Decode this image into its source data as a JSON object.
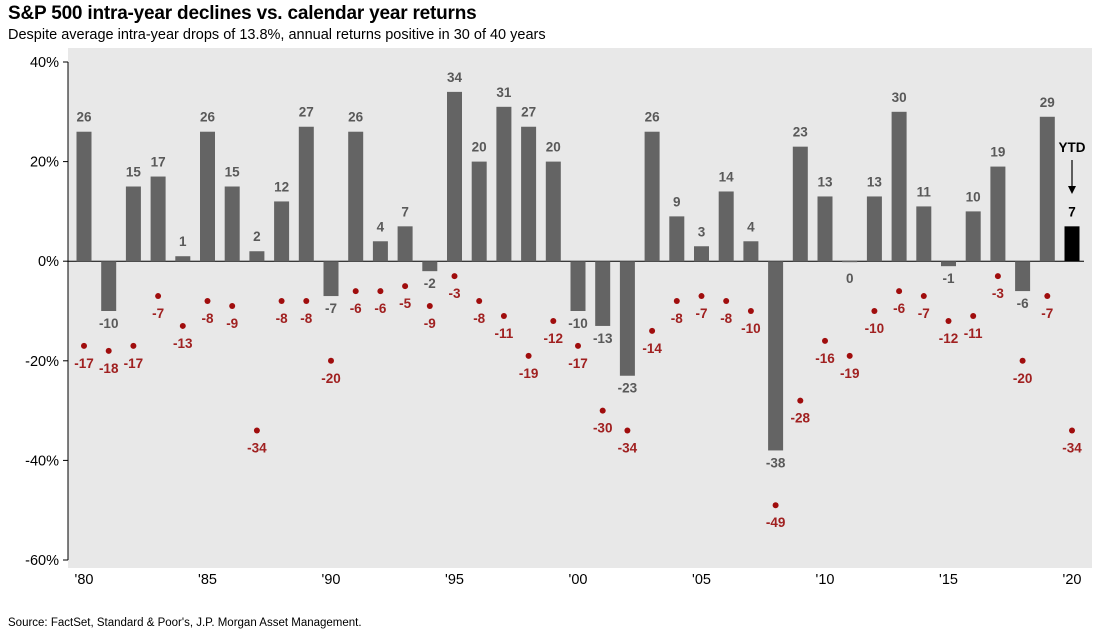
{
  "title": "S&P 500 intra-year declines vs. calendar year returns",
  "subtitle": "Despite average intra-year drops of 13.8%, annual returns positive in 30 of 40 years",
  "source": "Source: FactSet, Standard & Poor's, J.P. Morgan Asset Management.",
  "colors": {
    "bar": "#646464",
    "ytd_bar": "#000000",
    "dot": "#a00d0d",
    "dot_label": "#a02020",
    "bar_label": "#595959",
    "plot_bg": "#e8e8e8"
  },
  "chart_data": {
    "type": "bar",
    "x": [
      1980,
      1981,
      1982,
      1983,
      1984,
      1985,
      1986,
      1987,
      1988,
      1989,
      1990,
      1991,
      1992,
      1993,
      1994,
      1995,
      1996,
      1997,
      1998,
      1999,
      2000,
      2001,
      2002,
      2003,
      2004,
      2005,
      2006,
      2007,
      2008,
      2009,
      2010,
      2011,
      2012,
      2013,
      2014,
      2015,
      2016,
      2017,
      2018,
      2019,
      2020
    ],
    "series": [
      {
        "name": "",
        "kind": "bar",
        "values": [
          26,
          -10,
          15,
          17,
          1,
          26,
          15,
          2,
          12,
          27,
          -7,
          26,
          4,
          7,
          -2,
          34,
          20,
          31,
          27,
          20,
          -10,
          -13,
          -23,
          26,
          9,
          3,
          14,
          4,
          -38,
          23,
          13,
          0,
          13,
          30,
          11,
          -1,
          10,
          19,
          -6,
          29,
          7
        ],
        "labels": [
          "26",
          "-10",
          "15",
          "17",
          "1",
          "26",
          "15",
          "2",
          "12",
          "27",
          "-7",
          "26",
          "4",
          "7",
          "-2",
          "34",
          "20",
          "31",
          "27",
          "20",
          "-10",
          "-13",
          "-23",
          "26",
          "9",
          "3",
          "14",
          "4",
          "-38",
          "23",
          "13",
          "0",
          "13",
          "30",
          "11",
          "-1",
          "10",
          "19",
          "-6",
          "29",
          "7"
        ]
      },
      {
        "name": "",
        "kind": "scatter",
        "values": [
          -17,
          -18,
          -17,
          -7,
          -13,
          -8,
          -9,
          -34,
          -8,
          -8,
          -20,
          -6,
          -6,
          -5,
          -9,
          -3,
          -8,
          -11,
          -19,
          -12,
          -17,
          -30,
          -34,
          -14,
          -8,
          -7,
          -8,
          -10,
          -49,
          -28,
          -16,
          -19,
          -10,
          -6,
          -7,
          -12,
          -11,
          -3,
          -20,
          -7,
          -34
        ],
        "labels": [
          "-17",
          "-18",
          "-17",
          "-7",
          "-13",
          "-8",
          "-9",
          "-34",
          "-8",
          "-8",
          "-20",
          "-6",
          "-6",
          "-5",
          "-9",
          "-3",
          "-8",
          "-11",
          "-19",
          "-12",
          "-17",
          "-30",
          "-34",
          "-14",
          "-8",
          "-7",
          "-8",
          "-10",
          "-49",
          "-28",
          "-16",
          "-19",
          "-10",
          "-6",
          "-7",
          "-12",
          "-11",
          "-3",
          "-20",
          "-7",
          "-34"
        ]
      }
    ],
    "ytd_index": 40,
    "ytd_annotation": "YTD",
    "ylim": [
      -60,
      40
    ],
    "yticks": [
      40,
      20,
      0,
      -20,
      -40,
      -60
    ],
    "ytick_labels": [
      "40%",
      "20%",
      "0%",
      "-20%",
      "-40%",
      "-60%"
    ],
    "xtick_years": [
      1980,
      1985,
      1990,
      1995,
      2000,
      2005,
      2010,
      2015,
      2020
    ],
    "xtick_labels": [
      "'80",
      "'85",
      "'90",
      "'95",
      "'00",
      "'05",
      "'10",
      "'15",
      "'20"
    ],
    "xlabel": "",
    "ylabel": "",
    "grid": false,
    "legend": "none"
  }
}
